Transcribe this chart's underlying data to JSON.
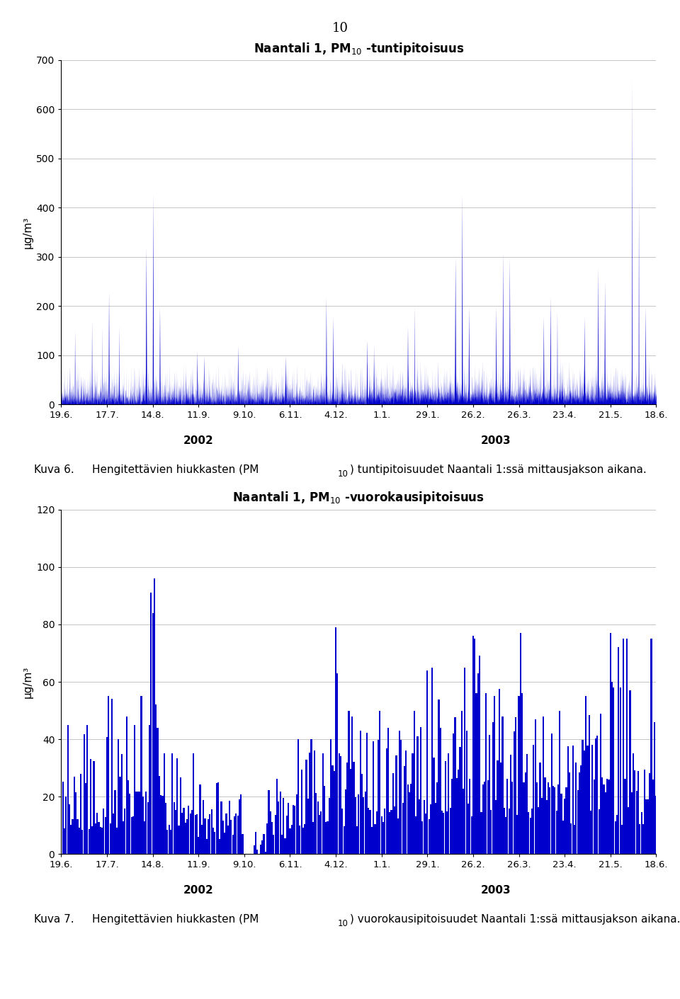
{
  "page_number": "10",
  "chart1": {
    "title_parts": [
      "Naantali 1, PM",
      "10",
      " -tuntipitoisuus"
    ],
    "ylabel": "µg/m³",
    "ylim": [
      0,
      700
    ],
    "yticks": [
      0,
      100,
      200,
      300,
      400,
      500,
      600,
      700
    ],
    "color": "#0000cc"
  },
  "chart2": {
    "title_parts": [
      "Naantali 1, PM",
      "10",
      " -vuorokausipitoisuus"
    ],
    "ylabel": "µg/m³",
    "ylim": [
      0,
      120
    ],
    "yticks": [
      0,
      20,
      40,
      60,
      80,
      100,
      120
    ],
    "color": "#0000cc"
  },
  "xtick_labels": [
    "19.6.",
    "17.7.",
    "14.8.",
    "11.9.",
    "9.10.",
    "6.11.",
    "4.12.",
    "1.1.",
    "29.1.",
    "26.2.",
    "26.3.",
    "23.4.",
    "21.5.",
    "18.6."
  ],
  "caption1_num": "Kuva 6.",
  "caption1_text": "Hengitettävien hiukkasten (PM",
  "caption1_sub": "10",
  "caption1_rest": ") tuntipitoisuudet Naantali 1:ssä mittausjakson aikana.",
  "caption2_num": "Kuva 7.",
  "caption2_text": "Hengitettävien hiukkasten (PM",
  "caption2_sub": "10",
  "caption2_rest": ") vuorokausipitoisuudet Naantali 1:ssä mittausjakson aikana.",
  "background_color": "#ffffff",
  "year2002_label": "2002",
  "year2003_label": "2003"
}
